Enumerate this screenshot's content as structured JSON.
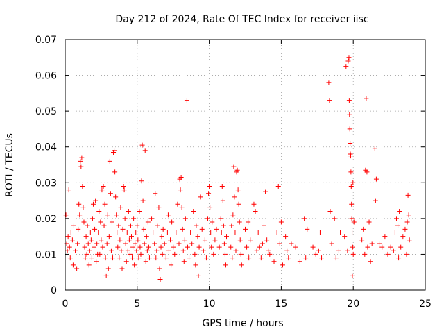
{
  "chart_data": {
    "type": "scatter",
    "title": "Day 212 of 2024, Rate Of TEC Index for receiver iisc",
    "xlabel": "GPS time / hours",
    "ylabel": "ROTI / TECUs",
    "xlim": [
      0,
      25
    ],
    "ylim": [
      0,
      0.07
    ],
    "x_ticks": [
      0,
      5,
      10,
      15,
      20,
      25
    ],
    "x_tick_labels": [
      "0",
      "5",
      "10",
      "15",
      "20",
      "25"
    ],
    "y_ticks": [
      0,
      0.01,
      0.02,
      0.03,
      0.04,
      0.05,
      0.06,
      0.07
    ],
    "y_tick_labels": [
      "0",
      "0.01",
      "0.02",
      "0.03",
      "0.04",
      "0.05",
      "0.06",
      "0.07"
    ],
    "grid": true,
    "marker": "plus",
    "color": "#ff0000",
    "series": [
      {
        "name": "ROTI",
        "points": [
          [
            0.05,
            0.021
          ],
          [
            0.1,
            0.013
          ],
          [
            0.15,
            0.011
          ],
          [
            0.2,
            0.015
          ],
          [
            0.25,
            0.028
          ],
          [
            0.3,
            0.012
          ],
          [
            0.35,
            0.009
          ],
          [
            0.4,
            0.016
          ],
          [
            0.5,
            0.014
          ],
          [
            0.55,
            0.007
          ],
          [
            0.6,
            0.018
          ],
          [
            0.7,
            0.011
          ],
          [
            0.8,
            0.006
          ],
          [
            0.85,
            0.013
          ],
          [
            0.9,
            0.017
          ],
          [
            0.95,
            0.024
          ],
          [
            1.0,
            0.021
          ],
          [
            1.05,
            0.036
          ],
          [
            1.1,
            0.0345
          ],
          [
            1.15,
            0.037
          ],
          [
            1.2,
            0.029
          ],
          [
            1.25,
            0.023
          ],
          [
            1.3,
            0.019
          ],
          [
            1.35,
            0.012
          ],
          [
            1.4,
            0.009
          ],
          [
            1.45,
            0.015
          ],
          [
            1.5,
            0.01
          ],
          [
            1.55,
            0.018
          ],
          [
            1.6,
            0.013
          ],
          [
            1.65,
            0.007
          ],
          [
            1.7,
            0.011
          ],
          [
            1.75,
            0.016
          ],
          [
            1.8,
            0.014
          ],
          [
            1.85,
            0.009
          ],
          [
            1.9,
            0.02
          ],
          [
            1.95,
            0.024
          ],
          [
            2.0,
            0.012
          ],
          [
            2.05,
            0.017
          ],
          [
            2.1,
            0.025
          ],
          [
            2.15,
            0.008
          ],
          [
            2.2,
            0.013
          ],
          [
            2.25,
            0.01
          ],
          [
            2.3,
            0.016
          ],
          [
            2.35,
            0.022
          ],
          [
            2.4,
            0.01
          ],
          [
            2.45,
            0.019
          ],
          [
            2.5,
            0.014
          ],
          [
            2.55,
            0.028
          ],
          [
            2.6,
            0.012
          ],
          [
            2.65,
            0.029
          ],
          [
            2.7,
            0.018
          ],
          [
            2.75,
            0.024
          ],
          [
            2.8,
            0.009
          ],
          [
            2.85,
            0.004
          ],
          [
            2.9,
            0.013
          ],
          [
            2.95,
            0.021
          ],
          [
            3.0,
            0.006
          ],
          [
            3.05,
            0.015
          ],
          [
            3.1,
            0.036
          ],
          [
            3.15,
            0.027
          ],
          [
            3.2,
            0.011
          ],
          [
            3.25,
            0.019
          ],
          [
            3.3,
            0.009
          ],
          [
            3.35,
            0.0385
          ],
          [
            3.4,
            0.039
          ],
          [
            3.45,
            0.033
          ],
          [
            3.5,
            0.026
          ],
          [
            3.55,
            0.021
          ],
          [
            3.6,
            0.016
          ],
          [
            3.65,
            0.012
          ],
          [
            3.7,
            0.018
          ],
          [
            3.75,
            0.009
          ],
          [
            3.8,
            0.014
          ],
          [
            3.85,
            0.023
          ],
          [
            3.9,
            0.011
          ],
          [
            3.95,
            0.006
          ],
          [
            4.0,
            0.017
          ],
          [
            4.05,
            0.029
          ],
          [
            4.1,
            0.028
          ],
          [
            4.15,
            0.02
          ],
          [
            4.2,
            0.013
          ],
          [
            4.25,
            0.008
          ],
          [
            4.3,
            0.016
          ],
          [
            4.35,
            0.011
          ],
          [
            4.4,
            0.022
          ],
          [
            4.45,
            0.014
          ],
          [
            4.5,
            0.01
          ],
          [
            4.55,
            0.018
          ],
          [
            4.6,
            0.015
          ],
          [
            4.65,
            0.009
          ],
          [
            4.7,
            0.012
          ],
          [
            4.75,
            0.02
          ],
          [
            4.8,
            0.007
          ],
          [
            4.85,
            0.013
          ],
          [
            4.9,
            0.016
          ],
          [
            4.95,
            0.011
          ],
          [
            5.0,
            0.018
          ],
          [
            5.05,
            0.014
          ],
          [
            5.1,
            0.009
          ],
          [
            5.15,
            0.022
          ],
          [
            5.2,
            0.012
          ],
          [
            5.25,
            0.01
          ],
          [
            5.3,
            0.0305
          ],
          [
            5.35,
            0.0405
          ],
          [
            5.4,
            0.025
          ],
          [
            5.45,
            0.017
          ],
          [
            5.5,
            0.013
          ],
          [
            5.55,
            0.039
          ],
          [
            5.6,
            0.008
          ],
          [
            5.65,
            0.015
          ],
          [
            5.7,
            0.011
          ],
          [
            5.75,
            0.019
          ],
          [
            5.8,
            0.012
          ],
          [
            5.85,
            0.009
          ],
          [
            6.0,
            0.02
          ],
          [
            6.1,
            0.016
          ],
          [
            6.2,
            0.013
          ],
          [
            6.25,
            0.027
          ],
          [
            6.3,
            0.009
          ],
          [
            6.35,
            0.011
          ],
          [
            6.4,
            0.018
          ],
          [
            6.5,
            0.023
          ],
          [
            6.55,
            0.006
          ],
          [
            6.6,
            0.003
          ],
          [
            6.65,
            0.012
          ],
          [
            6.7,
            0.015
          ],
          [
            6.75,
            0.01
          ],
          [
            6.8,
            0.017
          ],
          [
            6.9,
            0.013
          ],
          [
            7.0,
            0.009
          ],
          [
            7.1,
            0.016
          ],
          [
            7.15,
            0.021
          ],
          [
            7.2,
            0.011
          ],
          [
            7.3,
            0.014
          ],
          [
            7.35,
            0.007
          ],
          [
            7.4,
            0.019
          ],
          [
            7.5,
            0.012
          ],
          [
            7.6,
            0.01
          ],
          [
            7.7,
            0.016
          ],
          [
            7.8,
            0.024
          ],
          [
            7.9,
            0.013
          ],
          [
            7.95,
            0.031
          ],
          [
            8.0,
            0.028
          ],
          [
            8.05,
            0.0315
          ],
          [
            8.1,
            0.023
          ],
          [
            8.15,
            0.017
          ],
          [
            8.2,
            0.011
          ],
          [
            8.25,
            0.008
          ],
          [
            8.3,
            0.014
          ],
          [
            8.35,
            0.02
          ],
          [
            8.45,
            0.053
          ],
          [
            8.5,
            0.012
          ],
          [
            8.6,
            0.009
          ],
          [
            8.7,
            0.016
          ],
          [
            8.8,
            0.013
          ],
          [
            8.9,
            0.022
          ],
          [
            9.0,
            0.01
          ],
          [
            9.05,
            0.007
          ],
          [
            9.1,
            0.018
          ],
          [
            9.2,
            0.015
          ],
          [
            9.25,
            0.004
          ],
          [
            9.3,
            0.012
          ],
          [
            9.4,
            0.026
          ],
          [
            9.5,
            0.017
          ],
          [
            9.6,
            0.011
          ],
          [
            9.7,
            0.014
          ],
          [
            9.8,
            0.009
          ],
          [
            9.9,
            0.02
          ],
          [
            9.95,
            0.027
          ],
          [
            10.0,
            0.029
          ],
          [
            10.05,
            0.023
          ],
          [
            10.1,
            0.016
          ],
          [
            10.15,
            0.012
          ],
          [
            10.2,
            0.019
          ],
          [
            10.3,
            0.01
          ],
          [
            10.4,
            0.014
          ],
          [
            10.5,
            0.017
          ],
          [
            10.7,
            0.012
          ],
          [
            10.8,
            0.02
          ],
          [
            10.85,
            0.016
          ],
          [
            10.9,
            0.029
          ],
          [
            10.95,
            0.025
          ],
          [
            11.0,
            0.018
          ],
          [
            11.05,
            0.013
          ],
          [
            11.1,
            0.01
          ],
          [
            11.15,
            0.007
          ],
          [
            11.2,
            0.015
          ],
          [
            11.5,
            0.012
          ],
          [
            11.55,
            0.018
          ],
          [
            11.6,
            0.009
          ],
          [
            11.65,
            0.021
          ],
          [
            11.7,
            0.0345
          ],
          [
            11.75,
            0.026
          ],
          [
            11.8,
            0.016
          ],
          [
            11.85,
            0.011
          ],
          [
            11.9,
            0.033
          ],
          [
            11.95,
            0.0335
          ],
          [
            12.0,
            0.028
          ],
          [
            12.05,
            0.024
          ],
          [
            12.1,
            0.019
          ],
          [
            12.15,
            0.014
          ],
          [
            12.2,
            0.01
          ],
          [
            12.25,
            0.007
          ],
          [
            12.5,
            0.017
          ],
          [
            12.6,
            0.012
          ],
          [
            12.7,
            0.019
          ],
          [
            12.75,
            0.009
          ],
          [
            12.85,
            0.014
          ],
          [
            13.1,
            0.024
          ],
          [
            13.2,
            0.022
          ],
          [
            13.3,
            0.011
          ],
          [
            13.4,
            0.016
          ],
          [
            13.5,
            0.012
          ],
          [
            13.6,
            0.009
          ],
          [
            13.7,
            0.013
          ],
          [
            13.8,
            0.018
          ],
          [
            13.9,
            0.0275
          ],
          [
            14.0,
            0.014
          ],
          [
            14.1,
            0.011
          ],
          [
            14.2,
            0.01
          ],
          [
            14.5,
            0.008
          ],
          [
            14.7,
            0.016
          ],
          [
            14.8,
            0.029
          ],
          [
            14.9,
            0.013
          ],
          [
            15.0,
            0.019
          ],
          [
            15.1,
            0.007
          ],
          [
            15.3,
            0.015
          ],
          [
            15.4,
            0.011
          ],
          [
            15.5,
            0.009
          ],
          [
            15.7,
            0.013
          ],
          [
            16.0,
            0.012
          ],
          [
            16.3,
            0.008
          ],
          [
            16.6,
            0.02
          ],
          [
            16.7,
            0.009
          ],
          [
            16.8,
            0.017
          ],
          [
            17.2,
            0.012
          ],
          [
            17.4,
            0.01
          ],
          [
            17.6,
            0.011
          ],
          [
            17.7,
            0.016
          ],
          [
            17.8,
            0.009
          ],
          [
            18.3,
            0.058
          ],
          [
            18.35,
            0.053
          ],
          [
            18.4,
            0.022
          ],
          [
            18.5,
            0.013
          ],
          [
            18.7,
            0.02
          ],
          [
            18.8,
            0.009
          ],
          [
            19.0,
            0.011
          ],
          [
            19.1,
            0.016
          ],
          [
            19.4,
            0.015
          ],
          [
            19.5,
            0.0625
          ],
          [
            19.6,
            0.011
          ],
          [
            19.65,
            0.064
          ],
          [
            19.7,
            0.065
          ],
          [
            19.72,
            0.053
          ],
          [
            19.74,
            0.049
          ],
          [
            19.76,
            0.045
          ],
          [
            19.78,
            0.041
          ],
          [
            19.8,
            0.038
          ],
          [
            19.82,
            0.0375
          ],
          [
            19.84,
            0.033
          ],
          [
            19.86,
            0.029
          ],
          [
            19.88,
            0.024
          ],
          [
            19.9,
            0.02
          ],
          [
            19.92,
            0.016
          ],
          [
            19.94,
            0.004
          ],
          [
            19.96,
            0.012
          ],
          [
            19.98,
            0.03
          ],
          [
            20.0,
            0.01
          ],
          [
            20.05,
            0.019
          ],
          [
            20.6,
            0.014
          ],
          [
            20.7,
            0.017
          ],
          [
            20.8,
            0.01
          ],
          [
            20.85,
            0.0335
          ],
          [
            20.9,
            0.0535
          ],
          [
            20.95,
            0.033
          ],
          [
            21.0,
            0.012
          ],
          [
            21.1,
            0.019
          ],
          [
            21.2,
            0.008
          ],
          [
            21.3,
            0.013
          ],
          [
            21.5,
            0.0395
          ],
          [
            21.55,
            0.025
          ],
          [
            21.6,
            0.031
          ],
          [
            21.8,
            0.013
          ],
          [
            22.0,
            0.012
          ],
          [
            22.2,
            0.015
          ],
          [
            22.4,
            0.01
          ],
          [
            22.6,
            0.012
          ],
          [
            22.8,
            0.011
          ],
          [
            22.9,
            0.016
          ],
          [
            23.0,
            0.02
          ],
          [
            23.1,
            0.018
          ],
          [
            23.15,
            0.009
          ],
          [
            23.2,
            0.022
          ],
          [
            23.3,
            0.012
          ],
          [
            23.45,
            0.015
          ],
          [
            23.6,
            0.017
          ],
          [
            23.7,
            0.01
          ],
          [
            23.75,
            0.019
          ],
          [
            23.8,
            0.0265
          ],
          [
            23.85,
            0.021
          ],
          [
            23.9,
            0.014
          ]
        ]
      }
    ]
  }
}
